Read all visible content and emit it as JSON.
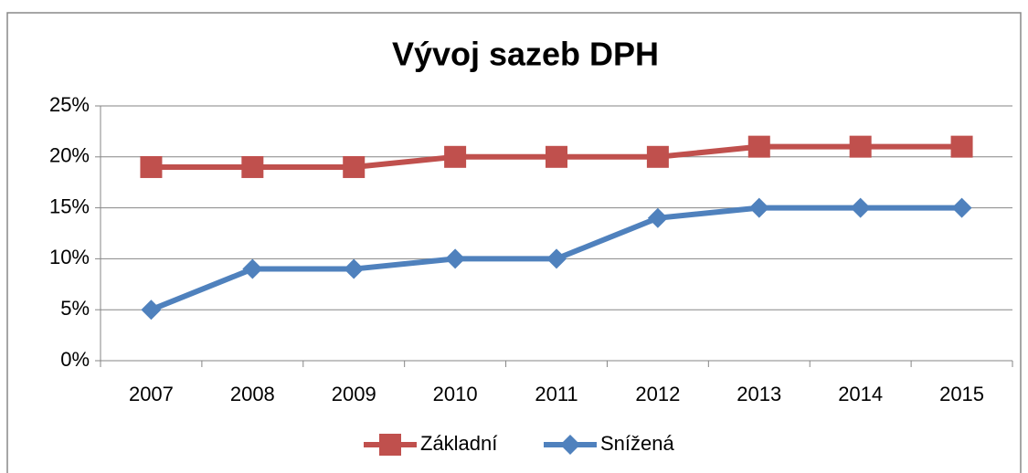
{
  "chart_data": {
    "type": "line",
    "title": "Vývoj sazeb DPH",
    "categories": [
      "2007",
      "2008",
      "2009",
      "2010",
      "2011",
      "2012",
      "2013",
      "2014",
      "2015"
    ],
    "series": [
      {
        "name": "Základní",
        "color": "#c0504d",
        "marker": "square",
        "values": [
          19,
          19,
          19,
          20,
          20,
          20,
          21,
          21,
          21
        ]
      },
      {
        "name": "Snížená",
        "color": "#4f81bd",
        "marker": "diamond",
        "values": [
          5,
          9,
          9,
          10,
          10,
          14,
          15,
          15,
          15
        ]
      }
    ],
    "ylim": [
      0,
      25
    ],
    "yticks": [
      {
        "value": 0,
        "label": "0%"
      },
      {
        "value": 5,
        "label": "5%"
      },
      {
        "value": 10,
        "label": "10%"
      },
      {
        "value": 15,
        "label": "15%"
      },
      {
        "value": 20,
        "label": "20%"
      },
      {
        "value": 25,
        "label": "25%"
      }
    ],
    "grid": true,
    "legend": "bottom"
  }
}
